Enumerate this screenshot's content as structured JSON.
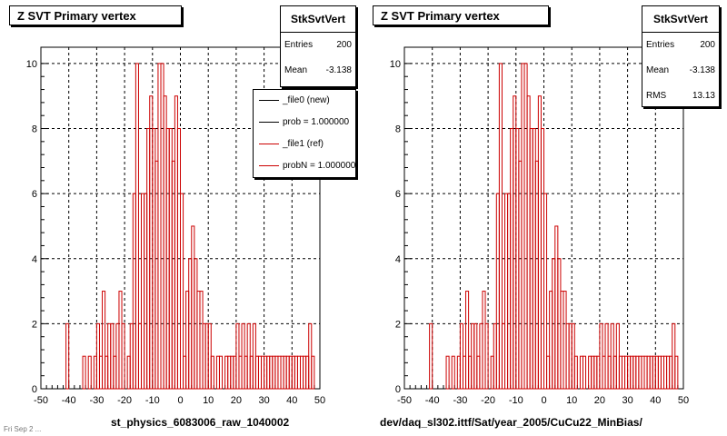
{
  "footer_text": "Fri Sep 2 ...",
  "chart_data": [
    {
      "type": "bar",
      "title": "Z SVT Primary vertex",
      "xlabel": "st_physics_6083006_raw_1040002",
      "ylabel": "",
      "xlim": [
        -50,
        50
      ],
      "ylim": [
        0,
        10.5
      ],
      "xticks": [
        -50,
        -40,
        -30,
        -20,
        -10,
        0,
        10,
        20,
        30,
        40,
        50
      ],
      "yticks": [
        0,
        2,
        4,
        6,
        8,
        10
      ],
      "grid": true,
      "bin_width": 1,
      "series": [
        {
          "color": "#cc0000",
          "x": [
            -41,
            -35,
            -33,
            -31,
            -30,
            -29,
            -28,
            -27,
            -26,
            -25,
            -24,
            -23,
            -22,
            -21,
            -20,
            -19,
            -18,
            -17,
            -16,
            -15,
            -14,
            -13,
            -12,
            -11,
            -10,
            -9,
            -8,
            -7,
            -6,
            -5,
            -4,
            -3,
            -2,
            -1,
            0,
            1,
            2,
            3,
            4,
            5,
            6,
            7,
            8,
            9,
            10,
            11,
            12,
            13,
            14,
            15,
            16,
            17,
            18,
            19,
            20,
            21,
            22,
            23,
            24,
            25,
            26,
            27,
            28,
            29,
            30,
            31,
            32,
            33,
            34,
            35,
            36,
            37,
            38,
            39,
            40,
            41,
            42,
            43,
            44,
            45,
            46,
            47
          ],
          "values": [
            2,
            1,
            1,
            1,
            2,
            1,
            3,
            1,
            2,
            2,
            1,
            2,
            3,
            2,
            0,
            1,
            2,
            6,
            10,
            2,
            6,
            6,
            8,
            9,
            8,
            7,
            10,
            10,
            9,
            8,
            8,
            7,
            9,
            8,
            6,
            1,
            3,
            4,
            5,
            4,
            3,
            3,
            2,
            2,
            2,
            1,
            0,
            1,
            1,
            0,
            1,
            1,
            1,
            1,
            2,
            1,
            2,
            1,
            2,
            1,
            2,
            1,
            1,
            1,
            1,
            1,
            1,
            1,
            1,
            1,
            1,
            1,
            1,
            1,
            1,
            1,
            1,
            1,
            1,
            1,
            2,
            1
          ]
        }
      ],
      "stats": {
        "name": "StkSvtVert",
        "entries_label": "Entries",
        "entries": "200",
        "mean_label": "Mean",
        "mean": "-3.138"
      },
      "legend": [
        {
          "label": "_file0 (new)",
          "color": "#000000"
        },
        {
          "label": "prob = 1.000000",
          "color": "#000000"
        },
        {
          "label": "_file1 (ref)",
          "color": "#cc0000"
        },
        {
          "label": "probN = 1.000000",
          "color": "#cc0000"
        }
      ]
    },
    {
      "type": "bar",
      "title": "Z SVT Primary vertex",
      "xlabel": "dev/daq_sl302.ittf/Sat/year_2005/CuCu22_MinBias/",
      "ylabel": "",
      "xlim": [
        -50,
        50
      ],
      "ylim": [
        0,
        10.5
      ],
      "xticks": [
        -50,
        -40,
        -30,
        -20,
        -10,
        0,
        10,
        20,
        30,
        40,
        50
      ],
      "yticks": [
        0,
        2,
        4,
        6,
        8,
        10
      ],
      "grid": true,
      "bin_width": 1,
      "series": [
        {
          "color": "#cc0000",
          "x": [
            -41,
            -35,
            -33,
            -31,
            -30,
            -29,
            -28,
            -27,
            -26,
            -25,
            -24,
            -23,
            -22,
            -21,
            -20,
            -19,
            -18,
            -17,
            -16,
            -15,
            -14,
            -13,
            -12,
            -11,
            -10,
            -9,
            -8,
            -7,
            -6,
            -5,
            -4,
            -3,
            -2,
            -1,
            0,
            1,
            2,
            3,
            4,
            5,
            6,
            7,
            8,
            9,
            10,
            11,
            12,
            13,
            14,
            15,
            16,
            17,
            18,
            19,
            20,
            21,
            22,
            23,
            24,
            25,
            26,
            27,
            28,
            29,
            30,
            31,
            32,
            33,
            34,
            35,
            36,
            37,
            38,
            39,
            40,
            41,
            42,
            43,
            44,
            45,
            46,
            47
          ],
          "values": [
            2,
            1,
            1,
            1,
            2,
            1,
            3,
            1,
            2,
            2,
            1,
            2,
            3,
            2,
            0,
            1,
            2,
            6,
            10,
            2,
            6,
            6,
            8,
            9,
            8,
            7,
            10,
            10,
            9,
            8,
            8,
            7,
            9,
            8,
            6,
            1,
            3,
            4,
            5,
            4,
            3,
            3,
            2,
            2,
            2,
            1,
            0,
            1,
            1,
            0,
            1,
            1,
            1,
            1,
            2,
            1,
            2,
            1,
            2,
            1,
            2,
            1,
            1,
            1,
            1,
            1,
            1,
            1,
            1,
            1,
            1,
            1,
            1,
            1,
            1,
            1,
            1,
            1,
            1,
            1,
            2,
            1
          ]
        }
      ],
      "stats": {
        "name": "StkSvtVert",
        "entries_label": "Entries",
        "entries": "200",
        "mean_label": "Mean",
        "mean": "-3.138",
        "rms_label": "RMS",
        "rms": "13.13"
      }
    }
  ]
}
